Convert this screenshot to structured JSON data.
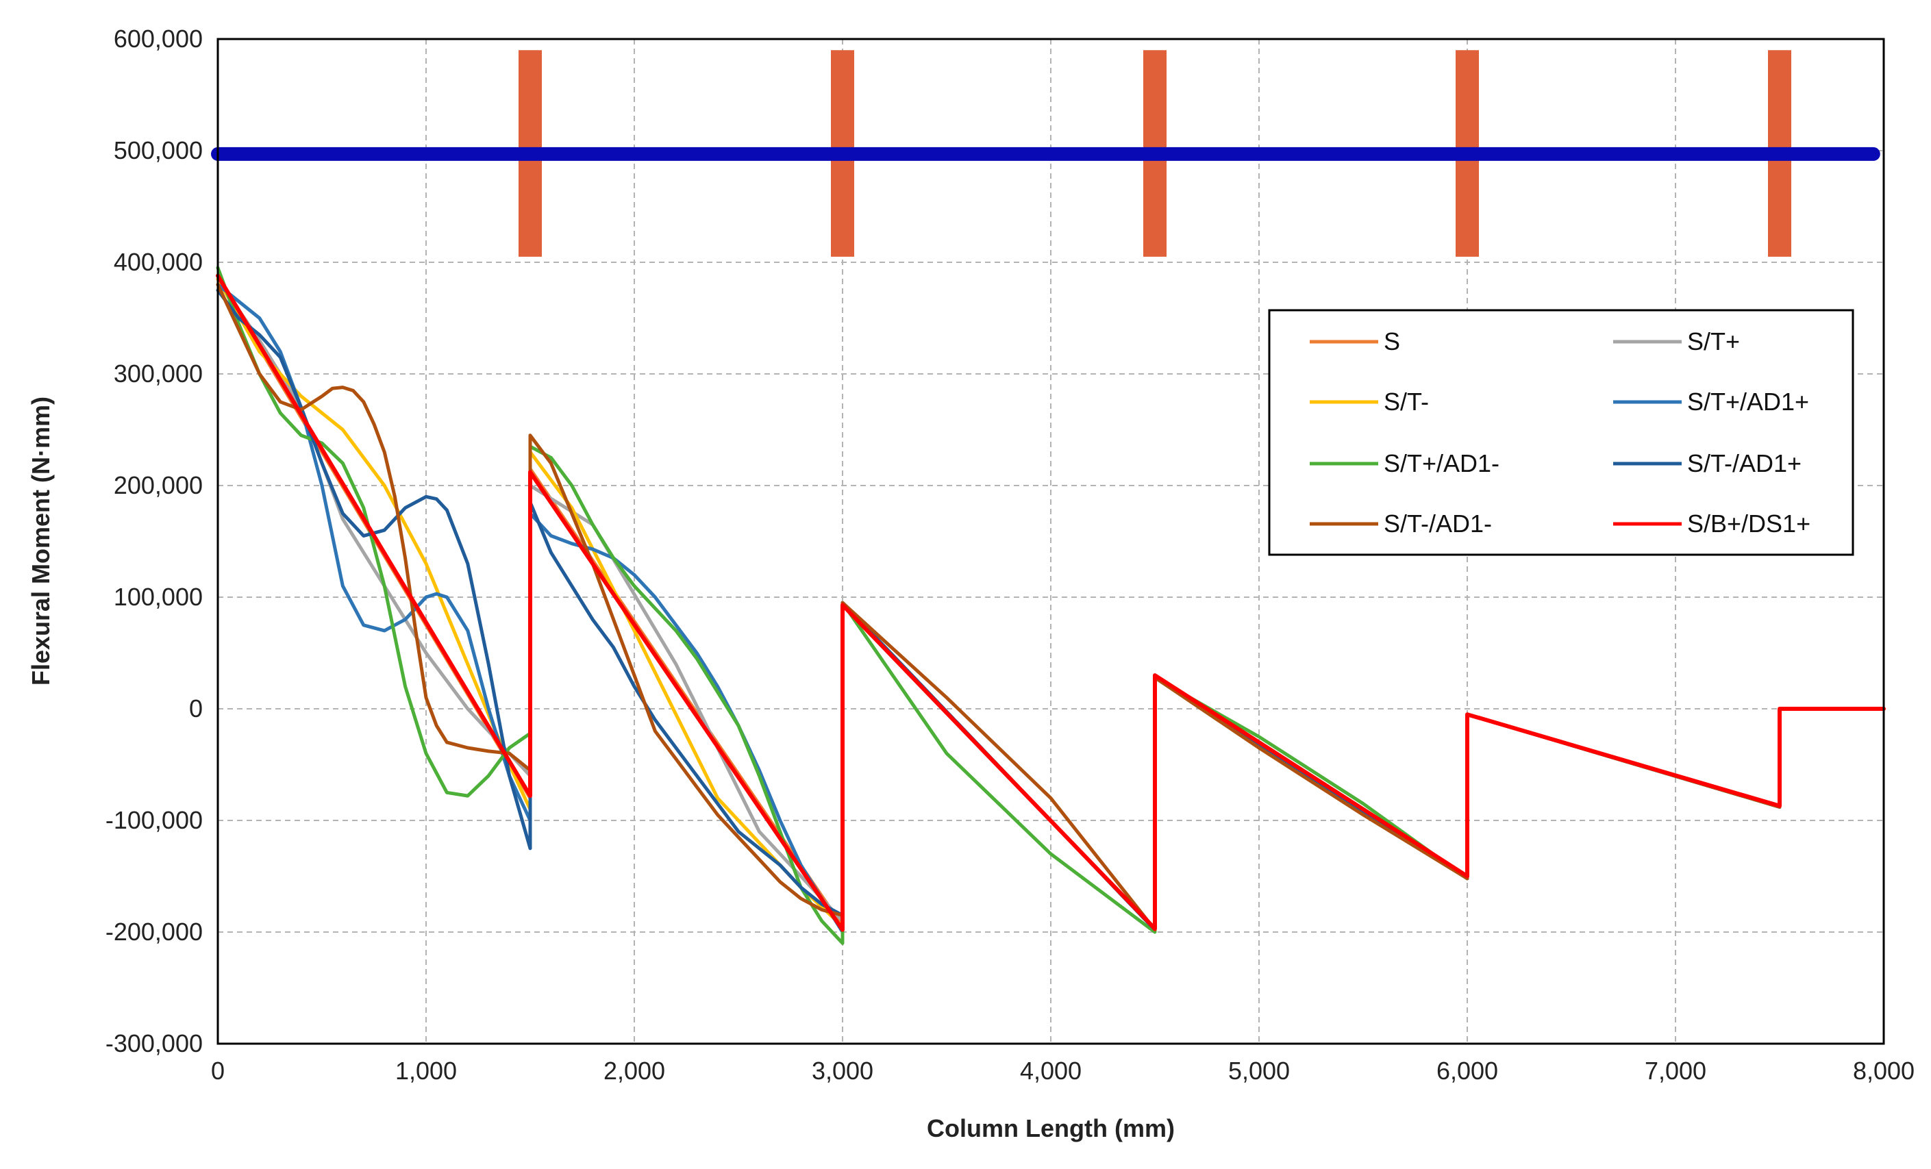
{
  "chart_data": {
    "type": "line",
    "title": "",
    "xlabel": "Column Length (mm)",
    "ylabel": "Flexural Moment (N·mm)",
    "xlim": [
      0,
      8000
    ],
    "ylim": [
      -300000,
      600000
    ],
    "grid": true,
    "legend_position": "right",
    "x_ticks": [
      "0",
      "1,000",
      "2,000",
      "3,000",
      "4,000",
      "5,000",
      "6,000",
      "7,000",
      "8,000"
    ],
    "y_ticks": [
      "-300,000",
      "-200,000",
      "-100,000",
      "0",
      "100,000",
      "200,000",
      "300,000",
      "400,000",
      "500,000",
      "600,000"
    ],
    "colors": {
      "S": "#ED7D31",
      "S/T+": "#A5A5A5",
      "S/T-": "#FFC000",
      "S/T+/AD1+": "#2E75B6",
      "S/T+/AD1-": "#4CAF38",
      "S/T-/AD1+": "#1F5C99",
      "S/T-/AD1-": "#B0500F",
      "S/B+/DS1+": "#FF0000",
      "column": "#0A0AB4",
      "support": "#E0603A"
    },
    "column_band": {
      "x": [
        0,
        7950
      ],
      "y": 497000
    },
    "supports": [
      {
        "x": 1500,
        "y": [
          405000,
          590000
        ]
      },
      {
        "x": 3000,
        "y": [
          405000,
          590000
        ]
      },
      {
        "x": 4500,
        "y": [
          405000,
          590000
        ]
      },
      {
        "x": 6000,
        "y": [
          405000,
          590000
        ]
      },
      {
        "x": 7500,
        "y": [
          405000,
          590000
        ]
      }
    ],
    "series": [
      {
        "name": "S",
        "x": [
          0,
          1500,
          1500,
          3000,
          3000,
          4500,
          4500,
          6000,
          6000,
          7500,
          7500,
          8000
        ],
        "y": [
          385000,
          -80000,
          215000,
          -195000,
          95000,
          -198000,
          28000,
          -152000,
          -5000,
          -88000,
          0,
          0
        ]
      },
      {
        "name": "S/T+",
        "x": [
          0,
          200,
          400,
          600,
          800,
          1000,
          1200,
          1400,
          1500,
          1500,
          1800,
          2200,
          2600,
          3000,
          3000,
          4500,
          4500,
          6000,
          6000,
          7500,
          7500,
          8000
        ],
        "y": [
          385000,
          330000,
          270000,
          170000,
          110000,
          50000,
          0,
          -40000,
          -60000,
          200000,
          165000,
          40000,
          -110000,
          -190000,
          95000,
          -198000,
          28000,
          -152000,
          -5000,
          -88000,
          0,
          0
        ]
      },
      {
        "name": "S/T-",
        "x": [
          0,
          200,
          400,
          600,
          800,
          1000,
          1200,
          1400,
          1500,
          1500,
          1700,
          2000,
          2400,
          2800,
          3000,
          3000,
          4500,
          4500,
          6000,
          6000,
          7500,
          7500,
          8000
        ],
        "y": [
          385000,
          320000,
          280000,
          250000,
          200000,
          130000,
          40000,
          -50000,
          -90000,
          230000,
          180000,
          70000,
          -80000,
          -160000,
          -195000,
          95000,
          -198000,
          28000,
          -152000,
          -5000,
          -88000,
          0,
          0
        ]
      },
      {
        "name": "S/T+/AD1+",
        "x": [
          0,
          100,
          200,
          300,
          400,
          500,
          600,
          700,
          800,
          900,
          1000,
          1050,
          1100,
          1200,
          1300,
          1400,
          1500,
          1500,
          1600,
          1700,
          1800,
          1900,
          2000,
          2100,
          2200,
          2300,
          2400,
          2500,
          2600,
          2700,
          2800,
          2900,
          3000,
          3000,
          4500,
          4500,
          6000,
          6000,
          7500,
          7500,
          8000
        ],
        "y": [
          380000,
          365000,
          350000,
          320000,
          270000,
          200000,
          110000,
          75000,
          70000,
          80000,
          100000,
          103000,
          100000,
          70000,
          0,
          -60000,
          -100000,
          175000,
          155000,
          148000,
          143000,
          135000,
          120000,
          100000,
          75000,
          50000,
          20000,
          -15000,
          -55000,
          -100000,
          -140000,
          -170000,
          -200000,
          95000,
          -198000,
          28000,
          -152000,
          -5000,
          -88000,
          0,
          0
        ]
      },
      {
        "name": "S/T+/AD1-",
        "x": [
          0,
          100,
          200,
          300,
          400,
          500,
          600,
          700,
          800,
          900,
          1000,
          1100,
          1200,
          1300,
          1400,
          1500,
          1500,
          1600,
          1700,
          1800,
          1900,
          2000,
          2100,
          2200,
          2300,
          2400,
          2500,
          2600,
          2700,
          2800,
          2900,
          3000,
          3000,
          3500,
          4000,
          4500,
          4500,
          5000,
          5500,
          6000,
          6000,
          7500,
          7500,
          8000
        ],
        "y": [
          395000,
          345000,
          300000,
          265000,
          245000,
          238000,
          220000,
          180000,
          110000,
          20000,
          -40000,
          -75000,
          -78000,
          -60000,
          -35000,
          -22000,
          235000,
          225000,
          200000,
          165000,
          135000,
          110000,
          90000,
          70000,
          45000,
          15000,
          -15000,
          -60000,
          -110000,
          -160000,
          -190000,
          -210000,
          95000,
          -40000,
          -130000,
          -200000,
          28000,
          -25000,
          -85000,
          -152000,
          -5000,
          -88000,
          0,
          0
        ]
      },
      {
        "name": "S/T-/AD1+",
        "x": [
          0,
          100,
          200,
          300,
          400,
          500,
          600,
          700,
          800,
          900,
          1000,
          1050,
          1100,
          1200,
          1300,
          1400,
          1500,
          1500,
          1600,
          1700,
          1800,
          1900,
          2000,
          2100,
          2200,
          2300,
          2400,
          2500,
          2600,
          2700,
          2800,
          2900,
          3000,
          3000,
          4500,
          4500,
          6000,
          6000,
          7500,
          7500,
          8000
        ],
        "y": [
          375000,
          350000,
          335000,
          315000,
          270000,
          220000,
          175000,
          155000,
          160000,
          180000,
          190000,
          188000,
          178000,
          130000,
          40000,
          -60000,
          -125000,
          185000,
          140000,
          110000,
          80000,
          55000,
          20000,
          -10000,
          -35000,
          -60000,
          -85000,
          -110000,
          -125000,
          -140000,
          -160000,
          -175000,
          -185000,
          95000,
          -198000,
          28000,
          -152000,
          -5000,
          -88000,
          0,
          0
        ]
      },
      {
        "name": "S/T-/AD1-",
        "x": [
          0,
          100,
          200,
          300,
          400,
          500,
          550,
          600,
          650,
          700,
          750,
          800,
          850,
          900,
          950,
          1000,
          1050,
          1100,
          1200,
          1300,
          1400,
          1500,
          1500,
          1600,
          1700,
          1800,
          1900,
          2000,
          2100,
          2200,
          2300,
          2400,
          2500,
          2600,
          2700,
          2800,
          2900,
          3000,
          3000,
          3500,
          4000,
          4500,
          4500,
          5000,
          5500,
          6000,
          6000,
          7500,
          7500,
          8000
        ],
        "y": [
          380000,
          340000,
          300000,
          275000,
          268000,
          280000,
          287000,
          288000,
          285000,
          275000,
          255000,
          230000,
          190000,
          135000,
          70000,
          10000,
          -15000,
          -30000,
          -35000,
          -38000,
          -40000,
          -55000,
          245000,
          220000,
          175000,
          130000,
          80000,
          30000,
          -20000,
          -45000,
          -70000,
          -95000,
          -115000,
          -135000,
          -155000,
          -170000,
          -180000,
          -185000,
          95000,
          10000,
          -80000,
          -198000,
          28000,
          -35000,
          -95000,
          -152000,
          -5000,
          -88000,
          0,
          0
        ]
      },
      {
        "name": "S/B+/DS1+",
        "x": [
          0,
          1500,
          1500,
          3000,
          3000,
          4500,
          4500,
          6000,
          6000,
          7500,
          7500,
          8000
        ],
        "y": [
          388000,
          -78000,
          212000,
          -198000,
          93000,
          -197000,
          30000,
          -150000,
          -5000,
          -87000,
          0,
          0
        ]
      }
    ],
    "legend": [
      {
        "name": "S",
        "row": 0,
        "col": 0
      },
      {
        "name": "S/T+",
        "row": 0,
        "col": 1
      },
      {
        "name": "S/T-",
        "row": 1,
        "col": 0
      },
      {
        "name": "S/T+/AD1+",
        "row": 1,
        "col": 1
      },
      {
        "name": "S/T+/AD1-",
        "row": 2,
        "col": 0
      },
      {
        "name": "S/T-/AD1+",
        "row": 2,
        "col": 1
      },
      {
        "name": "S/T-/AD1-",
        "row": 3,
        "col": 0
      },
      {
        "name": "S/B+/DS1+",
        "row": 3,
        "col": 1
      }
    ]
  }
}
